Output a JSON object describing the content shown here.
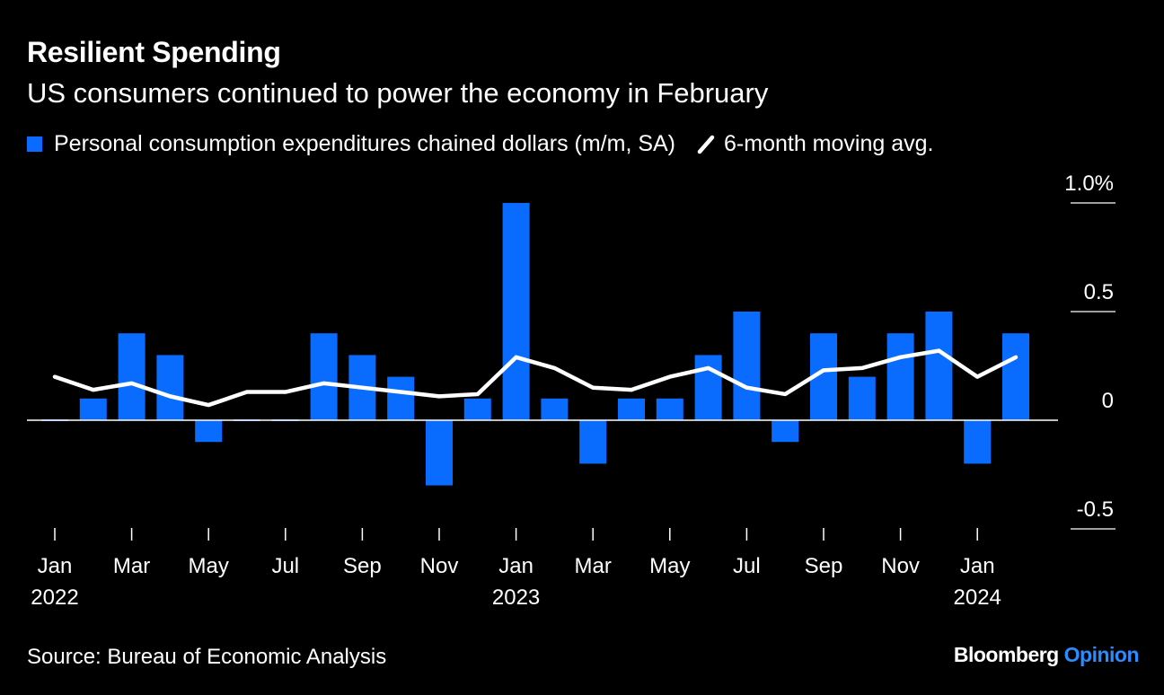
{
  "header": {
    "title": "Resilient Spending",
    "subtitle": "US consumers continued to power the economy in February"
  },
  "legend": {
    "bars_label": "Personal consumption expenditures chained dollars (m/m, SA)",
    "line_label": "6-month moving avg."
  },
  "footer": {
    "source": "Source: Bureau of Economic Analysis",
    "brand_name": "Bloomberg",
    "brand_suffix": "Opinion"
  },
  "colors": {
    "bar": "#0a6cff",
    "line": "#ffffff",
    "background": "#000000",
    "brand_accent": "#2b8cff"
  },
  "chart_data": {
    "type": "bar",
    "months": [
      "Jan 2022",
      "Feb 2022",
      "Mar 2022",
      "Apr 2022",
      "May 2022",
      "Jun 2022",
      "Jul 2022",
      "Aug 2022",
      "Sep 2022",
      "Oct 2022",
      "Nov 2022",
      "Dec 2022",
      "Jan 2023",
      "Feb 2023",
      "Mar 2023",
      "Apr 2023",
      "May 2023",
      "Jun 2023",
      "Jul 2023",
      "Aug 2023",
      "Sep 2023",
      "Oct 2023",
      "Nov 2023",
      "Dec 2023",
      "Jan 2024",
      "Feb 2024"
    ],
    "series": [
      {
        "name": "Personal consumption expenditures chained dollars (m/m, SA)",
        "kind": "bar",
        "values": [
          0.0,
          0.1,
          0.4,
          0.3,
          -0.1,
          0.0,
          0.0,
          0.4,
          0.3,
          0.2,
          -0.3,
          0.1,
          1.0,
          0.1,
          -0.2,
          0.1,
          0.1,
          0.3,
          0.5,
          -0.1,
          0.4,
          0.2,
          0.4,
          0.5,
          -0.2,
          0.4
        ]
      },
      {
        "name": "6-month moving avg.",
        "kind": "line",
        "values": [
          0.2,
          0.14,
          0.17,
          0.11,
          0.07,
          0.13,
          0.13,
          0.17,
          0.15,
          0.13,
          0.11,
          0.12,
          0.29,
          0.24,
          0.15,
          0.14,
          0.2,
          0.24,
          0.15,
          0.12,
          0.23,
          0.24,
          0.29,
          0.32,
          0.2,
          0.29
        ]
      }
    ],
    "x_tick_labels": [
      {
        "month_index": 0,
        "label": "Jan",
        "year": "2022"
      },
      {
        "month_index": 2,
        "label": "Mar"
      },
      {
        "month_index": 4,
        "label": "May"
      },
      {
        "month_index": 6,
        "label": "Jul"
      },
      {
        "month_index": 8,
        "label": "Sep"
      },
      {
        "month_index": 10,
        "label": "Nov"
      },
      {
        "month_index": 12,
        "label": "Jan",
        "year": "2023"
      },
      {
        "month_index": 14,
        "label": "Mar"
      },
      {
        "month_index": 16,
        "label": "May"
      },
      {
        "month_index": 18,
        "label": "Jul"
      },
      {
        "month_index": 20,
        "label": "Sep"
      },
      {
        "month_index": 22,
        "label": "Nov"
      },
      {
        "month_index": 24,
        "label": "Jan",
        "year": "2024"
      }
    ],
    "y_ticks": [
      {
        "value": 1.0,
        "label": "1.0%"
      },
      {
        "value": 0.5,
        "label": "0.5"
      },
      {
        "value": 0.0,
        "label": "0"
      },
      {
        "value": -0.5,
        "label": "-0.5"
      }
    ],
    "ylim": [
      -0.5,
      1.0
    ],
    "y_axis_side": "right",
    "grid": false,
    "legend_position": "top-left"
  }
}
